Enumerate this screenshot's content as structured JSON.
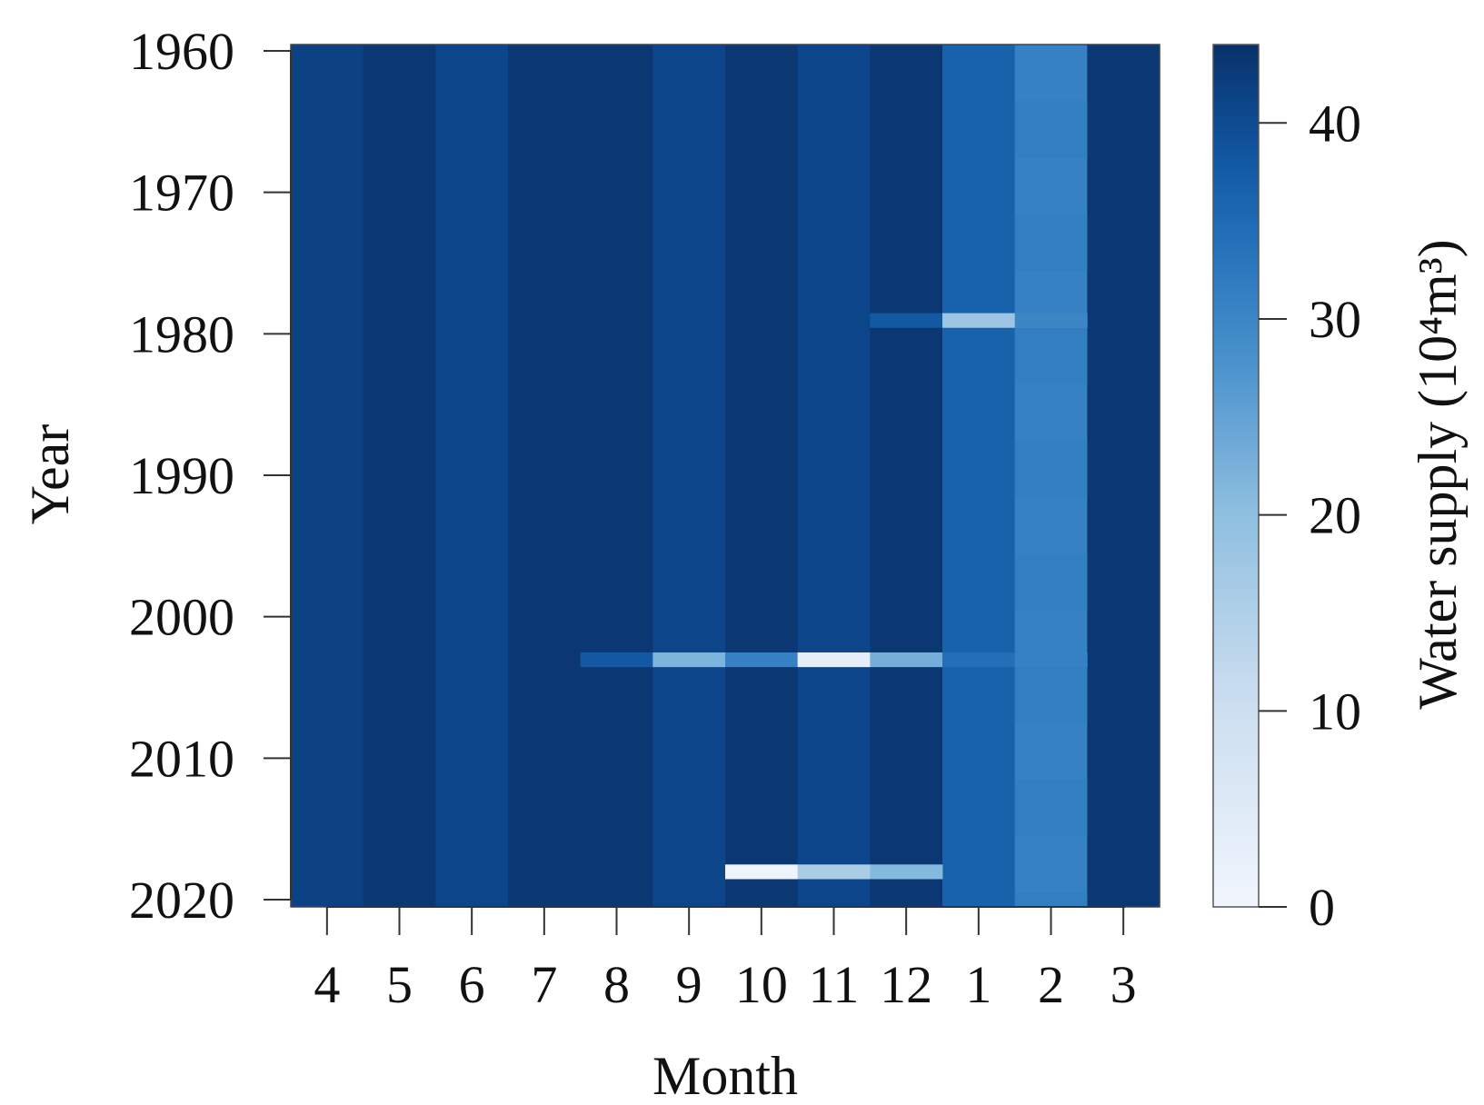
{
  "chart_data": {
    "type": "heatmap",
    "xlabel": "Month",
    "ylabel": "Year",
    "x_categories": [
      "4",
      "5",
      "6",
      "7",
      "8",
      "9",
      "10",
      "11",
      "12",
      "1",
      "2",
      "3"
    ],
    "y_range": [
      1960,
      2020
    ],
    "y_ticks": [
      "1960",
      "1970",
      "1980",
      "1990",
      "2000",
      "2010",
      "2020"
    ],
    "base_values": [
      41.5,
      43.0,
      41.0,
      43.0,
      43.0,
      41.0,
      43.0,
      41.0,
      43.0,
      36.5,
      31.0,
      43.0
    ],
    "col2_stripes": [
      31.5,
      30.5
    ],
    "anomalies": [
      {
        "year": 1979,
        "month": "12",
        "value": 38.0
      },
      {
        "year": 1979,
        "month": "1",
        "value": 18.0
      },
      {
        "year": 1979,
        "month": "2",
        "value": 30.0
      },
      {
        "year": 2003,
        "month": "8",
        "value": 38.0
      },
      {
        "year": 2003,
        "month": "9",
        "value": 22.0
      },
      {
        "year": 2003,
        "month": "10",
        "value": 31.0
      },
      {
        "year": 2003,
        "month": "11",
        "value": 3.0
      },
      {
        "year": 2003,
        "month": "12",
        "value": 23.0
      },
      {
        "year": 2003,
        "month": "1",
        "value": 34.0
      },
      {
        "year": 2003,
        "month": "2",
        "value": 31.0
      },
      {
        "year": 2018,
        "month": "10",
        "value": 1.0
      },
      {
        "year": 2018,
        "month": "11",
        "value": 16.0
      },
      {
        "year": 2018,
        "month": "12",
        "value": 21.0
      }
    ],
    "colorbar": {
      "label": "Water supply (10⁴m³)",
      "range": [
        0,
        44
      ],
      "ticks": [
        "0",
        "10",
        "20",
        "30",
        "40"
      ],
      "colormap": "Blues",
      "stops": [
        {
          "v": 0,
          "c": "#f1f6fd"
        },
        {
          "v": 11,
          "c": "#c9dcef"
        },
        {
          "v": 20,
          "c": "#8fbfe0"
        },
        {
          "v": 28,
          "c": "#4891cc"
        },
        {
          "v": 34,
          "c": "#2370b9"
        },
        {
          "v": 38,
          "c": "#1258a3"
        },
        {
          "v": 41,
          "c": "#0c4589"
        },
        {
          "v": 44,
          "c": "#0a3168"
        }
      ]
    },
    "grid": false
  }
}
